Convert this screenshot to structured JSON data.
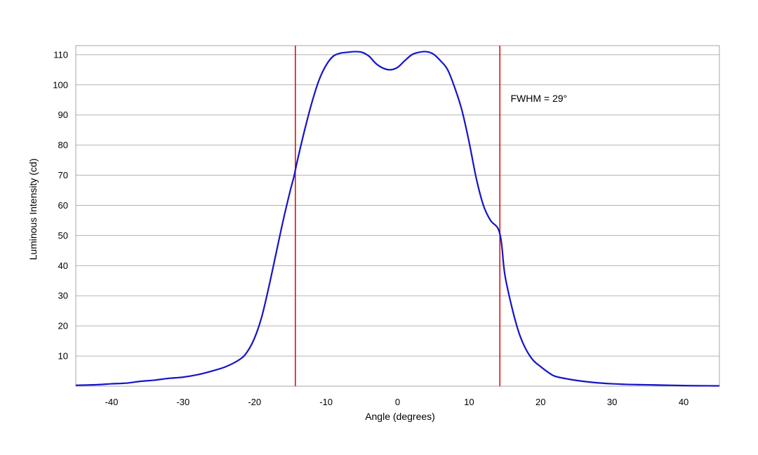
{
  "chart_data": {
    "type": "line",
    "title": "",
    "xlabel": "Angle (degrees)",
    "ylabel": "Luminous Intensity (cd)",
    "xlim": [
      -45,
      45
    ],
    "ylim": [
      0,
      113
    ],
    "x_ticks": [
      -40,
      -30,
      -20,
      -10,
      0,
      10,
      20,
      30,
      40
    ],
    "y_ticks": [
      10,
      20,
      30,
      40,
      50,
      60,
      70,
      80,
      90,
      100,
      110
    ],
    "grid": "horizontal",
    "legend": "none",
    "series": [
      {
        "color": "#1414c8",
        "x": [
          -45,
          -42,
          -40,
          -38,
          -36,
          -34,
          -32,
          -30,
          -28,
          -26,
          -24,
          -22,
          -21,
          -20,
          -19,
          -18,
          -17,
          -16,
          -15,
          -14.5,
          -14,
          -13,
          -12,
          -11,
          -10,
          -9,
          -8,
          -7,
          -6,
          -5,
          -4,
          -3,
          -2,
          -1,
          0,
          1,
          2,
          3,
          4,
          5,
          6,
          7,
          8,
          9,
          10,
          11,
          12,
          13,
          14,
          14.5,
          15,
          16,
          17,
          18,
          19,
          20,
          21,
          22,
          24,
          26,
          28,
          30,
          32,
          34,
          36,
          38,
          40,
          42,
          45
        ],
        "y": [
          0.3,
          0.5,
          0.8,
          1.0,
          1.6,
          2.0,
          2.6,
          3.0,
          3.8,
          5.0,
          6.5,
          9.0,
          11.5,
          16.0,
          23.0,
          33.0,
          44.0,
          55.0,
          65.0,
          69.5,
          75.0,
          85.0,
          94.0,
          101.5,
          106.5,
          109.5,
          110.5,
          110.8,
          111.0,
          110.8,
          109.5,
          107.0,
          105.5,
          105.0,
          105.8,
          108.0,
          110.0,
          110.8,
          111.0,
          110.2,
          108.0,
          105.0,
          99.0,
          91.5,
          81.0,
          69.0,
          60.0,
          55.0,
          52.5,
          48.0,
          37.0,
          26.0,
          17.5,
          12.0,
          8.5,
          6.5,
          4.7,
          3.3,
          2.3,
          1.6,
          1.1,
          0.8,
          0.6,
          0.5,
          0.4,
          0.3,
          0.2,
          0.15,
          0.1
        ]
      }
    ],
    "markers": [
      {
        "x": -14.3,
        "color": "#e01010"
      },
      {
        "x": 14.3,
        "color": "#e01010"
      }
    ],
    "annotation": {
      "text": "FWHM = 29°",
      "x": 15.8,
      "y": 95.5
    }
  }
}
